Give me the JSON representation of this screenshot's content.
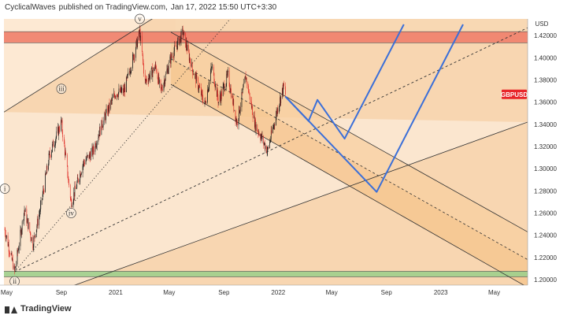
{
  "header": {
    "author": "CyclicalWaves",
    "published_text": "published on TradingView.com,",
    "date_text": "Jan 17, 2022 15:50 UTC+3:30"
  },
  "branding": {
    "logo_text": "TradingView",
    "logo_icon": "tradingview-logo-icon"
  },
  "colors": {
    "up": "#1b1b1b",
    "down": "#e0302a",
    "resistance_zone": "#f07f6a",
    "support_zone": "#9fcf8c",
    "channel_fill": "#f8cfa0",
    "projection": "#3b6fd8",
    "price_label": "#e8262a",
    "background_band": "#fbe6cf"
  },
  "chart_data": {
    "type": "candlestick",
    "symbol": "GBPUSD",
    "currency_label": "USD",
    "y_axis": {
      "ticks": [
        "1.42000",
        "1.40000",
        "1.38000",
        "1.36000",
        "1.34000",
        "1.32000",
        "1.30000",
        "1.28000",
        "1.26000",
        "1.24000",
        "1.22000",
        "1.20000"
      ],
      "range": [
        1.195,
        1.435
      ]
    },
    "x_axis": {
      "ticks": [
        {
          "label": "May",
          "date": "2020-05-01"
        },
        {
          "label": "Sep",
          "date": "2020-09-01"
        },
        {
          "label": "2021",
          "date": "2021-01-01"
        },
        {
          "label": "May",
          "date": "2021-05-01"
        },
        {
          "label": "Sep",
          "date": "2021-09-01"
        },
        {
          "label": "2022",
          "date": "2022-01-01"
        },
        {
          "label": "May",
          "date": "2022-05-01"
        },
        {
          "label": "Sep",
          "date": "2022-09-01"
        },
        {
          "label": "2023",
          "date": "2023-01-01"
        },
        {
          "label": "May",
          "date": "2023-05-01"
        }
      ],
      "range": [
        "2020-04-25",
        "2023-07-15"
      ]
    },
    "price_path": [
      {
        "date": "2020-04-27",
        "price": 1.245
      },
      {
        "date": "2020-05-19",
        "price": 1.207
      },
      {
        "date": "2020-06-10",
        "price": 1.263
      },
      {
        "date": "2020-06-29",
        "price": 1.232
      },
      {
        "date": "2020-07-15",
        "price": 1.262
      },
      {
        "date": "2020-08-05",
        "price": 1.312
      },
      {
        "date": "2020-09-01",
        "price": 1.342
      },
      {
        "date": "2020-09-23",
        "price": 1.269
      },
      {
        "date": "2020-10-20",
        "price": 1.305
      },
      {
        "date": "2020-11-10",
        "price": 1.315
      },
      {
        "date": "2020-12-01",
        "price": 1.34
      },
      {
        "date": "2020-12-31",
        "price": 1.368
      },
      {
        "date": "2021-01-20",
        "price": 1.37
      },
      {
        "date": "2021-02-24",
        "price": 1.423
      },
      {
        "date": "2021-03-08",
        "price": 1.378
      },
      {
        "date": "2021-04-01",
        "price": 1.392
      },
      {
        "date": "2021-04-12",
        "price": 1.369
      },
      {
        "date": "2021-05-05",
        "price": 1.4
      },
      {
        "date": "2021-06-01",
        "price": 1.423
      },
      {
        "date": "2021-06-22",
        "price": 1.39
      },
      {
        "date": "2021-07-20",
        "price": 1.358
      },
      {
        "date": "2021-08-05",
        "price": 1.392
      },
      {
        "date": "2021-08-20",
        "price": 1.36
      },
      {
        "date": "2021-09-10",
        "price": 1.384
      },
      {
        "date": "2021-09-30",
        "price": 1.341
      },
      {
        "date": "2021-10-20",
        "price": 1.383
      },
      {
        "date": "2021-11-10",
        "price": 1.34
      },
      {
        "date": "2021-12-08",
        "price": 1.316
      },
      {
        "date": "2021-12-31",
        "price": 1.355
      },
      {
        "date": "2022-01-13",
        "price": 1.374
      },
      {
        "date": "2022-01-17",
        "price": 1.367
      }
    ],
    "current_price_label": "GBPUSD",
    "zones": [
      {
        "name": "resistance-zone",
        "from": 1.4135,
        "to": 1.4235
      },
      {
        "name": "support-zone",
        "from": 1.2025,
        "to": 1.2075
      }
    ],
    "projection_paths": [
      [
        {
          "date": "2022-01-17",
          "price": 1.365
        },
        {
          "date": "2022-03-10",
          "price": 1.343
        },
        {
          "date": "2022-03-30",
          "price": 1.362
        },
        {
          "date": "2022-05-30",
          "price": 1.327
        },
        {
          "date": "2022-10-10",
          "price": 1.43
        }
      ],
      [
        {
          "date": "2022-01-17",
          "price": 1.365
        },
        {
          "date": "2022-08-10",
          "price": 1.279
        },
        {
          "date": "2023-02-20",
          "price": 1.43
        }
      ]
    ],
    "wave_labels": [
      {
        "text": "i",
        "date": "2020-04-27",
        "price": 1.282
      },
      {
        "text": "ii",
        "date": "2020-05-19",
        "price": 1.1985
      },
      {
        "text": "iii",
        "date": "2020-09-01",
        "price": 1.372
      },
      {
        "text": "iv",
        "date": "2020-09-23",
        "price": 1.26
      },
      {
        "text": "v",
        "date": "2021-02-24",
        "price": 1.435
      }
    ]
  }
}
